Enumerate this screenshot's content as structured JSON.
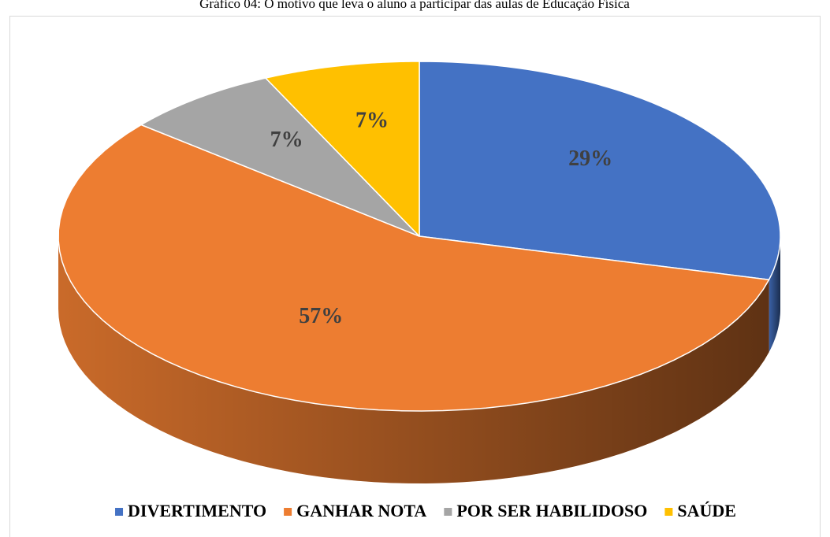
{
  "chart_data": {
    "type": "pie",
    "title": "Gráfico 04: O motivo que leva o aluno a participar das aulas de Educação Física",
    "categories": [
      "DIVERTIMENTO",
      "GANHAR NOTA",
      "POR SER HABILIDOSO",
      "SAÚDE"
    ],
    "values": [
      29,
      57,
      7,
      7
    ],
    "value_labels": [
      "29%",
      "57%",
      "7%",
      "7%"
    ],
    "colors": [
      "#4472c4",
      "#ed7d31",
      "#a5a5a5",
      "#ffc000"
    ],
    "legend": "bottom"
  }
}
